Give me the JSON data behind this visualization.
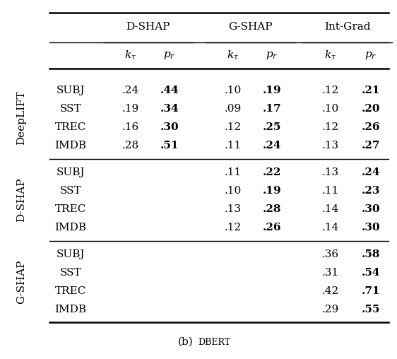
{
  "title": "(b) DBERT",
  "col_groups": [
    "D-SHAP",
    "G-SHAP",
    "Int-Grad"
  ],
  "row_groups": [
    "DeepLIFT",
    "D-SHAP",
    "G-SHAP"
  ],
  "row_labels": [
    [
      "SUBJ",
      "SST",
      "TREC",
      "IMDB"
    ],
    [
      "SUBJ",
      "SST",
      "TREC",
      "IMDB"
    ],
    [
      "SUBJ",
      "SST",
      "TREC",
      "IMDB"
    ]
  ],
  "data": [
    [
      ".24",
      ".44",
      ".10",
      ".19",
      ".12",
      ".21"
    ],
    [
      ".19",
      ".34",
      ".09",
      ".17",
      ".10",
      ".20"
    ],
    [
      ".16",
      ".30",
      ".12",
      ".25",
      ".12",
      ".26"
    ],
    [
      ".28",
      ".51",
      ".11",
      ".24",
      ".13",
      ".27"
    ],
    [
      "",
      "",
      ".11",
      ".22",
      ".13",
      ".24"
    ],
    [
      "",
      "",
      ".10",
      ".19",
      ".11",
      ".23"
    ],
    [
      "",
      "",
      ".13",
      ".28",
      ".14",
      ".30"
    ],
    [
      "",
      "",
      ".12",
      ".26",
      ".14",
      ".30"
    ],
    [
      "",
      "",
      "",
      "",
      ".36",
      ".58"
    ],
    [
      "",
      "",
      "",
      "",
      ".31",
      ".54"
    ],
    [
      "",
      "",
      "",
      "",
      ".42",
      ".71"
    ],
    [
      "",
      "",
      "",
      "",
      ".29",
      ".55"
    ]
  ],
  "bold": [
    [
      false,
      true,
      false,
      true,
      false,
      true
    ],
    [
      false,
      true,
      false,
      true,
      false,
      true
    ],
    [
      false,
      true,
      false,
      true,
      false,
      true
    ],
    [
      false,
      true,
      false,
      true,
      false,
      true
    ],
    [
      false,
      false,
      false,
      true,
      false,
      true
    ],
    [
      false,
      false,
      false,
      true,
      false,
      true
    ],
    [
      false,
      false,
      false,
      true,
      false,
      true
    ],
    [
      false,
      false,
      false,
      true,
      false,
      true
    ],
    [
      false,
      false,
      false,
      false,
      false,
      true
    ],
    [
      false,
      false,
      false,
      false,
      false,
      true
    ],
    [
      false,
      false,
      false,
      false,
      false,
      true
    ],
    [
      false,
      false,
      false,
      false,
      false,
      true
    ]
  ],
  "figsize": [
    5.62,
    5.08
  ],
  "dpi": 100
}
